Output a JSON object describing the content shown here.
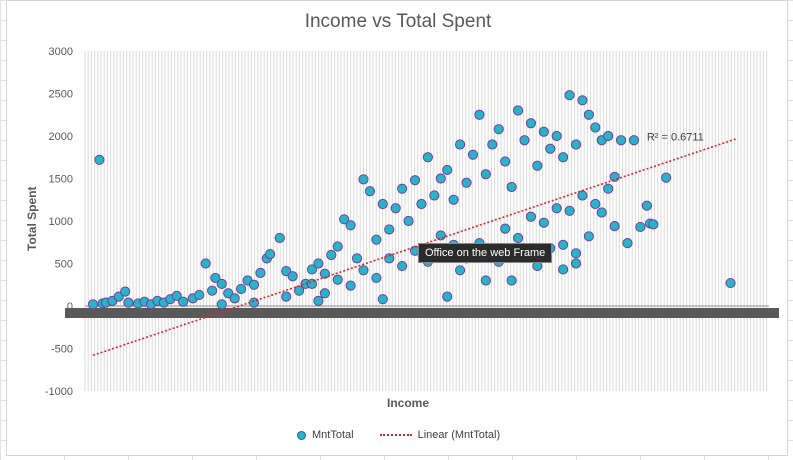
{
  "chart_data": {
    "type": "scatter",
    "title": "Income vs Total Spent",
    "xlabel": "Income",
    "ylabel": "Total Spent",
    "ylim": [
      -1000,
      3000
    ],
    "yticks": [
      -1000,
      -500,
      0,
      500,
      1000,
      1500,
      2000,
      2500,
      3000
    ],
    "grid": true,
    "legend_position": "bottom",
    "series": [
      {
        "name": "MntTotal",
        "color": "#2ab3c7",
        "edge_color": "#7040a0",
        "points": [
          [
            0.0,
            20
          ],
          [
            0.01,
            1720
          ],
          [
            0.015,
            30
          ],
          [
            0.02,
            40
          ],
          [
            0.03,
            60
          ],
          [
            0.04,
            110
          ],
          [
            0.05,
            170
          ],
          [
            0.055,
            40
          ],
          [
            0.07,
            30
          ],
          [
            0.08,
            50
          ],
          [
            0.09,
            20
          ],
          [
            0.1,
            60
          ],
          [
            0.11,
            40
          ],
          [
            0.12,
            80
          ],
          [
            0.13,
            120
          ],
          [
            0.14,
            50
          ],
          [
            0.155,
            90
          ],
          [
            0.165,
            130
          ],
          [
            0.175,
            500
          ],
          [
            0.185,
            180
          ],
          [
            0.19,
            330
          ],
          [
            0.2,
            260
          ],
          [
            0.21,
            150
          ],
          [
            0.22,
            90
          ],
          [
            0.23,
            200
          ],
          [
            0.24,
            300
          ],
          [
            0.25,
            250
          ],
          [
            0.26,
            390
          ],
          [
            0.27,
            560
          ],
          [
            0.275,
            610
          ],
          [
            0.29,
            800
          ],
          [
            0.3,
            410
          ],
          [
            0.31,
            350
          ],
          [
            0.32,
            180
          ],
          [
            0.33,
            260
          ],
          [
            0.34,
            430
          ],
          [
            0.35,
            500
          ],
          [
            0.36,
            380
          ],
          [
            0.37,
            600
          ],
          [
            0.38,
            700
          ],
          [
            0.39,
            1020
          ],
          [
            0.4,
            950
          ],
          [
            0.41,
            560
          ],
          [
            0.42,
            1490
          ],
          [
            0.43,
            1350
          ],
          [
            0.44,
            780
          ],
          [
            0.45,
            1200
          ],
          [
            0.46,
            900
          ],
          [
            0.47,
            1150
          ],
          [
            0.48,
            1380
          ],
          [
            0.49,
            1000
          ],
          [
            0.5,
            1480
          ],
          [
            0.51,
            1200
          ],
          [
            0.52,
            1750
          ],
          [
            0.53,
            1300
          ],
          [
            0.54,
            1500
          ],
          [
            0.55,
            1600
          ],
          [
            0.56,
            1250
          ],
          [
            0.57,
            1900
          ],
          [
            0.58,
            1450
          ],
          [
            0.59,
            1780
          ],
          [
            0.6,
            2250
          ],
          [
            0.61,
            1550
          ],
          [
            0.62,
            1900
          ],
          [
            0.63,
            2080
          ],
          [
            0.64,
            1700
          ],
          [
            0.65,
            1400
          ],
          [
            0.66,
            2300
          ],
          [
            0.67,
            1950
          ],
          [
            0.68,
            2150
          ],
          [
            0.69,
            1650
          ],
          [
            0.7,
            2050
          ],
          [
            0.71,
            1850
          ],
          [
            0.72,
            2000
          ],
          [
            0.73,
            1750
          ],
          [
            0.74,
            2480
          ],
          [
            0.75,
            1900
          ],
          [
            0.76,
            2420
          ],
          [
            0.77,
            2250
          ],
          [
            0.78,
            2100
          ],
          [
            0.79,
            1950
          ],
          [
            0.8,
            2000
          ],
          [
            0.81,
            1520
          ],
          [
            0.82,
            1950
          ],
          [
            0.84,
            1950
          ],
          [
            0.86,
            1180
          ],
          [
            0.865,
            970
          ],
          [
            0.87,
            960
          ],
          [
            0.89,
            1510
          ],
          [
            0.99,
            270
          ],
          [
            0.3,
            110
          ],
          [
            0.34,
            260
          ],
          [
            0.36,
            150
          ],
          [
            0.38,
            310
          ],
          [
            0.4,
            240
          ],
          [
            0.42,
            420
          ],
          [
            0.44,
            330
          ],
          [
            0.46,
            560
          ],
          [
            0.48,
            470
          ],
          [
            0.5,
            650
          ],
          [
            0.52,
            520
          ],
          [
            0.54,
            830
          ],
          [
            0.56,
            720
          ],
          [
            0.58,
            560
          ],
          [
            0.6,
            740
          ],
          [
            0.62,
            620
          ],
          [
            0.64,
            910
          ],
          [
            0.66,
            800
          ],
          [
            0.68,
            1050
          ],
          [
            0.7,
            980
          ],
          [
            0.72,
            1150
          ],
          [
            0.74,
            1120
          ],
          [
            0.76,
            1300
          ],
          [
            0.78,
            1200
          ],
          [
            0.8,
            1380
          ],
          [
            0.57,
            420
          ],
          [
            0.61,
            300
          ],
          [
            0.63,
            520
          ],
          [
            0.67,
            600
          ],
          [
            0.69,
            470
          ],
          [
            0.71,
            680
          ],
          [
            0.73,
            720
          ],
          [
            0.75,
            620
          ],
          [
            0.77,
            820
          ],
          [
            0.79,
            1100
          ],
          [
            0.81,
            940
          ],
          [
            0.83,
            740
          ],
          [
            0.85,
            930
          ],
          [
            0.73,
            430
          ],
          [
            0.75,
            500
          ],
          [
            0.35,
            60
          ],
          [
            0.45,
            80
          ],
          [
            0.55,
            110
          ],
          [
            0.65,
            300
          ],
          [
            0.25,
            40
          ],
          [
            0.2,
            20
          ]
        ]
      },
      {
        "name": "Linear (MntTotal)",
        "color": "#d62728",
        "style": "dotted",
        "x": [
          0.0,
          1.0
        ],
        "values": [
          -580,
          1970
        ]
      }
    ],
    "annotations": [
      {
        "text": "R² = 0.6711"
      }
    ]
  },
  "tooltip": "Office on the web Frame",
  "legend": {
    "marker_label": "MntTotal",
    "line_label": "Linear (MntTotal)"
  }
}
